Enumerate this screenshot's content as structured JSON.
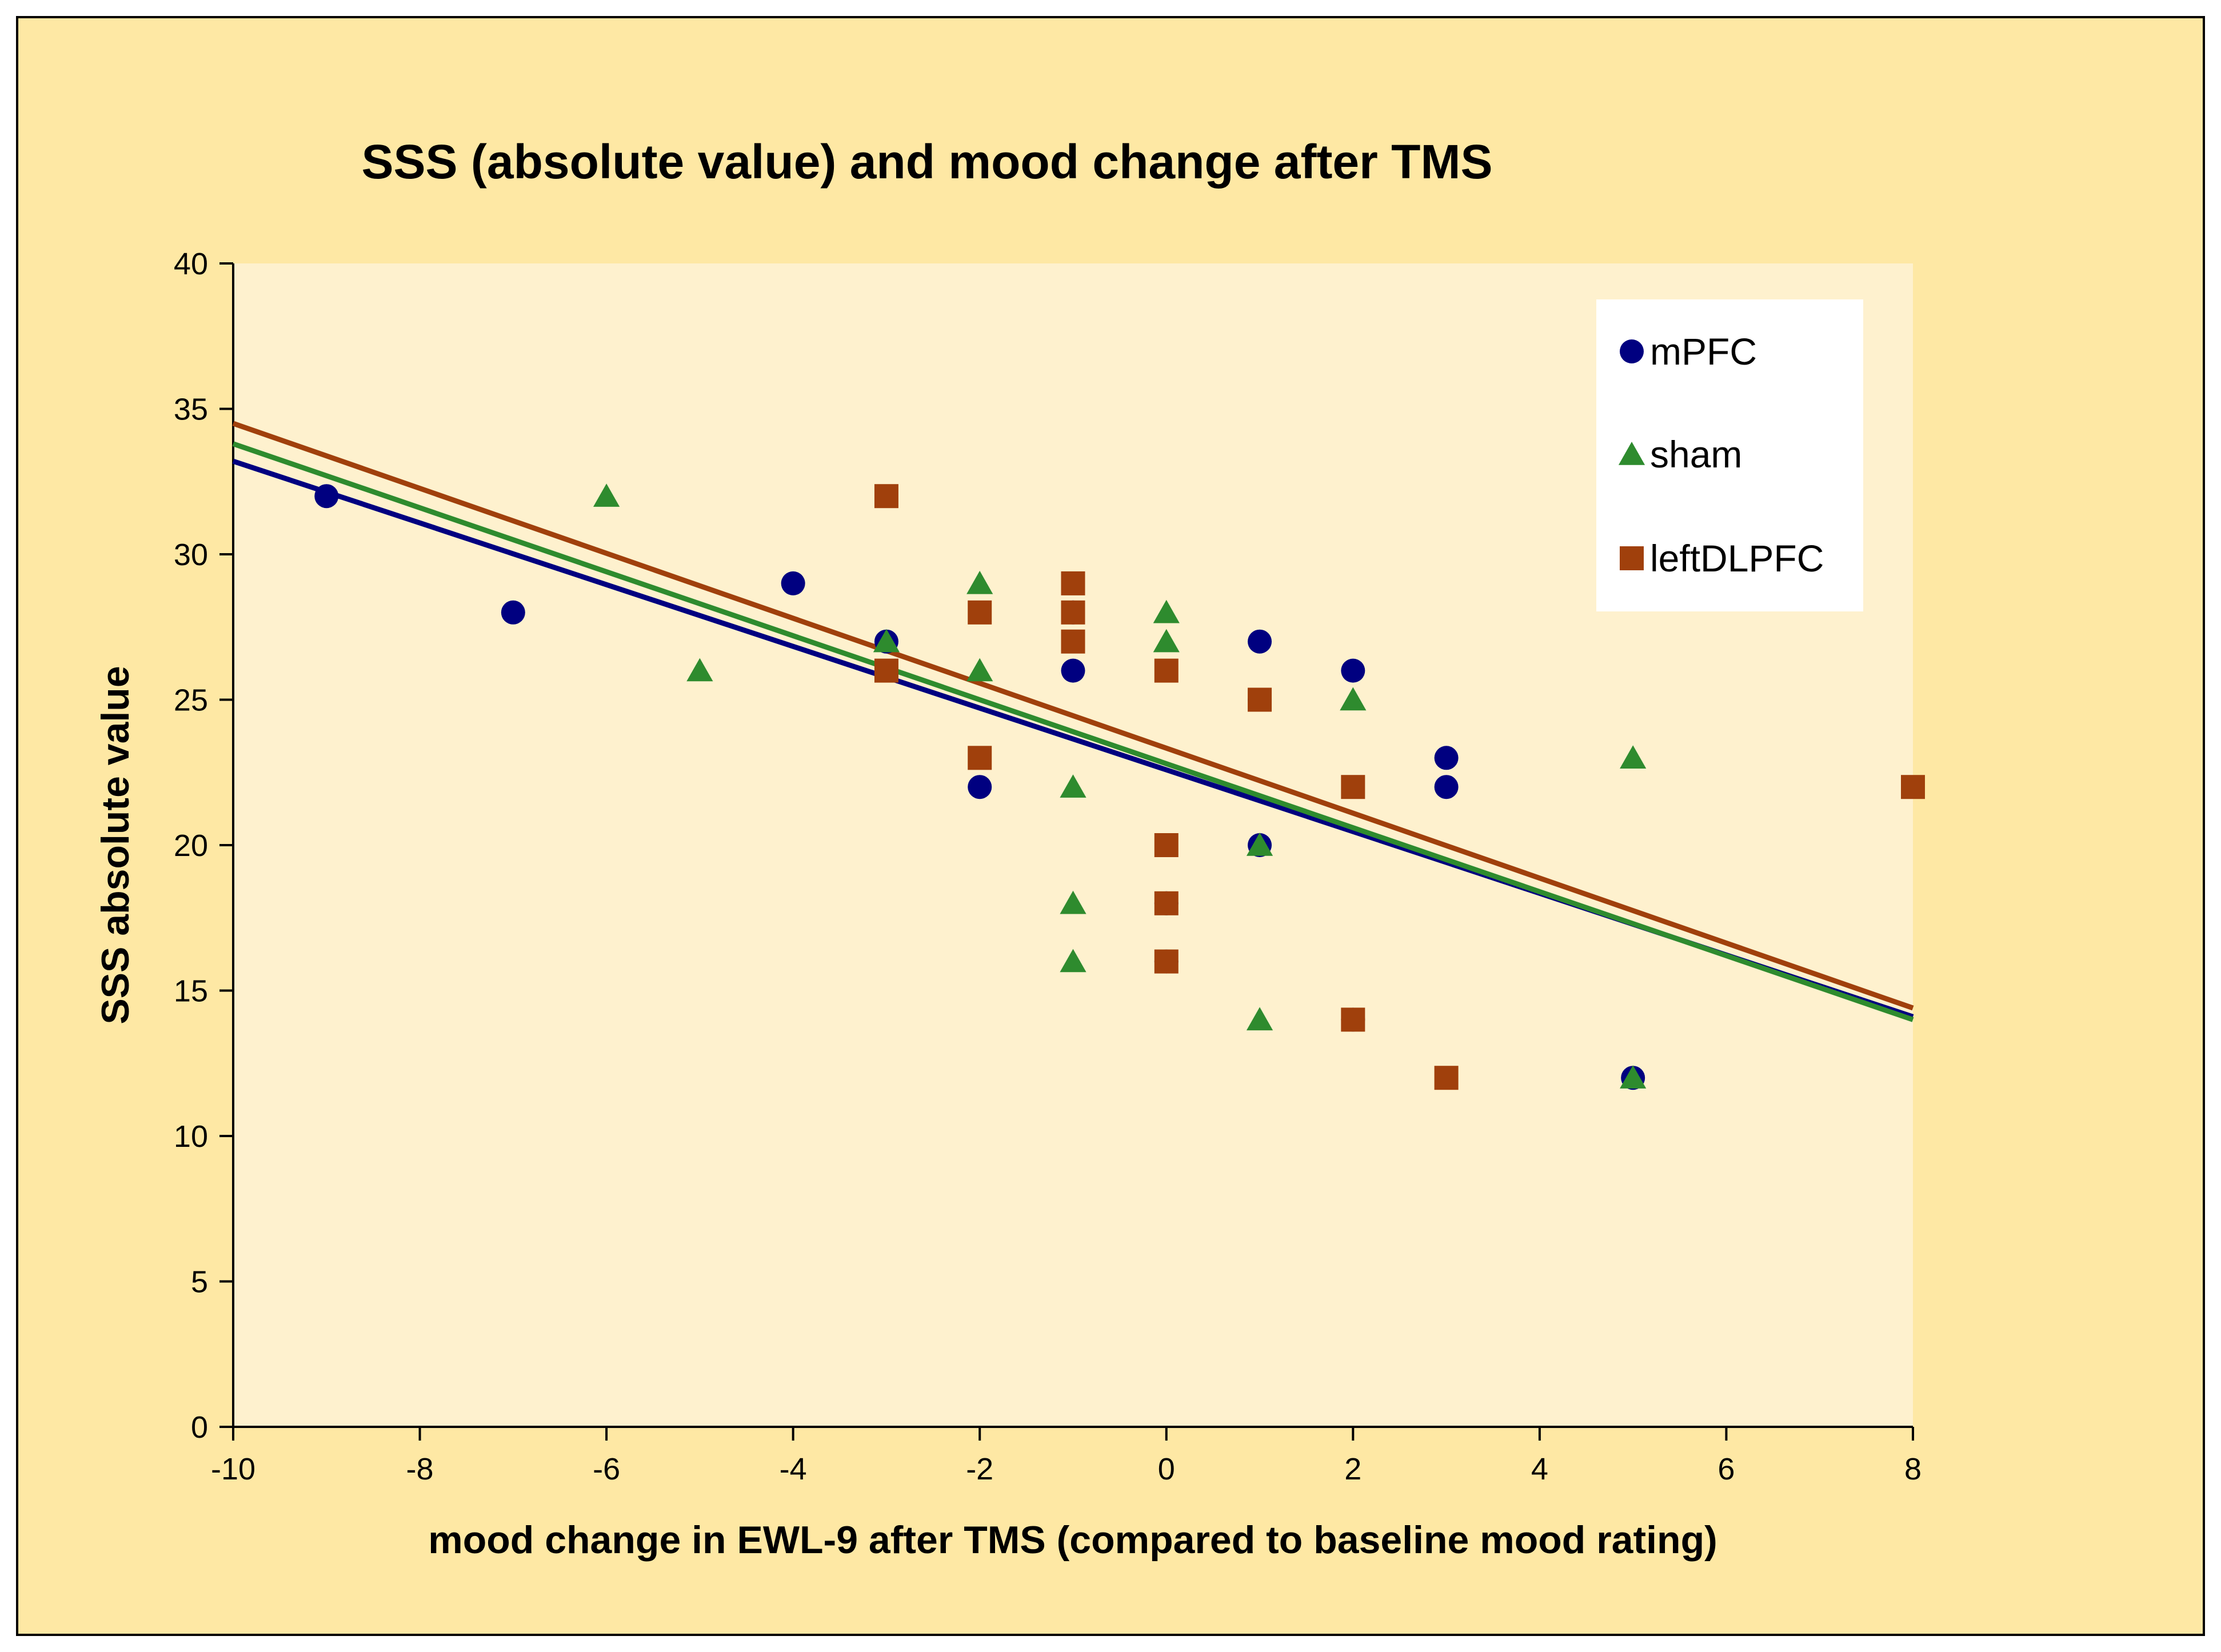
{
  "chart_data": {
    "type": "scatter",
    "title": "SSS (absolute value) and mood change after TMS",
    "xlabel": "mood change in EWL-9 after TMS (compared to baseline mood rating)",
    "ylabel": "SSS absolute value",
    "xlim": [
      -10,
      8
    ],
    "ylim": [
      0,
      40
    ],
    "x_ticks": [
      -10,
      -8,
      -6,
      -4,
      -2,
      0,
      2,
      4,
      6,
      8
    ],
    "x_tick_labels": [
      "-10",
      "-8",
      "-6",
      "-4",
      "-2",
      "0",
      "2",
      "4",
      "6",
      "8"
    ],
    "y_ticks": [
      0,
      5,
      10,
      15,
      20,
      25,
      30,
      35,
      40
    ],
    "y_tick_labels": [
      "0",
      "5",
      "10",
      "15",
      "20",
      "25",
      "30",
      "35",
      "40"
    ],
    "grid": false,
    "legend_position": "top-right",
    "series": [
      {
        "name": "mPFC",
        "marker": "circle",
        "color": "#000080",
        "points": [
          {
            "x": -9,
            "y": 32
          },
          {
            "x": -7,
            "y": 28
          },
          {
            "x": -4,
            "y": 29
          },
          {
            "x": -3,
            "y": 27
          },
          {
            "x": -2,
            "y": 22
          },
          {
            "x": -1,
            "y": 28
          },
          {
            "x": -1,
            "y": 26
          },
          {
            "x": 0,
            "y": 18
          },
          {
            "x": 0,
            "y": 16
          },
          {
            "x": 1,
            "y": 27
          },
          {
            "x": 1,
            "y": 25
          },
          {
            "x": 1,
            "y": 20
          },
          {
            "x": 2,
            "y": 26
          },
          {
            "x": 2,
            "y": 14
          },
          {
            "x": 3,
            "y": 23
          },
          {
            "x": 3,
            "y": 22
          },
          {
            "x": 5,
            "y": 12
          }
        ],
        "trendline": {
          "x": [
            -10,
            8
          ],
          "y": [
            33.2,
            14.1
          ]
        }
      },
      {
        "name": "sham",
        "marker": "triangle",
        "color": "#2E8B2E",
        "points": [
          {
            "x": -6,
            "y": 32
          },
          {
            "x": -5,
            "y": 26
          },
          {
            "x": -3,
            "y": 27
          },
          {
            "x": -2,
            "y": 29
          },
          {
            "x": -2,
            "y": 26
          },
          {
            "x": -1,
            "y": 22
          },
          {
            "x": -1,
            "y": 18
          },
          {
            "x": -1,
            "y": 16
          },
          {
            "x": 0,
            "y": 28
          },
          {
            "x": 0,
            "y": 27
          },
          {
            "x": 1,
            "y": 20
          },
          {
            "x": 1,
            "y": 14
          },
          {
            "x": 2,
            "y": 25
          },
          {
            "x": 5,
            "y": 23
          },
          {
            "x": 5,
            "y": 12
          }
        ],
        "trendline": {
          "x": [
            -10,
            8
          ],
          "y": [
            33.8,
            14.0
          ]
        }
      },
      {
        "name": "leftDLPFC",
        "marker": "square",
        "color": "#A0400C",
        "points": [
          {
            "x": -3,
            "y": 32
          },
          {
            "x": -3,
            "y": 26
          },
          {
            "x": -2,
            "y": 28
          },
          {
            "x": -2,
            "y": 23
          },
          {
            "x": -1,
            "y": 29
          },
          {
            "x": -1,
            "y": 28
          },
          {
            "x": -1,
            "y": 27
          },
          {
            "x": 0,
            "y": 26
          },
          {
            "x": 0,
            "y": 20
          },
          {
            "x": 0,
            "y": 18
          },
          {
            "x": 0,
            "y": 16
          },
          {
            "x": 1,
            "y": 25
          },
          {
            "x": 2,
            "y": 22
          },
          {
            "x": 2,
            "y": 14
          },
          {
            "x": 3,
            "y": 12
          },
          {
            "x": 8,
            "y": 22
          }
        ],
        "trendline": {
          "x": [
            -10,
            8
          ],
          "y": [
            34.5,
            14.4
          ]
        }
      }
    ]
  },
  "colors": {
    "outer_background": "#FEE8A4",
    "plot_background": "#FEF1CE",
    "legend_background": "#FFFFFF"
  }
}
